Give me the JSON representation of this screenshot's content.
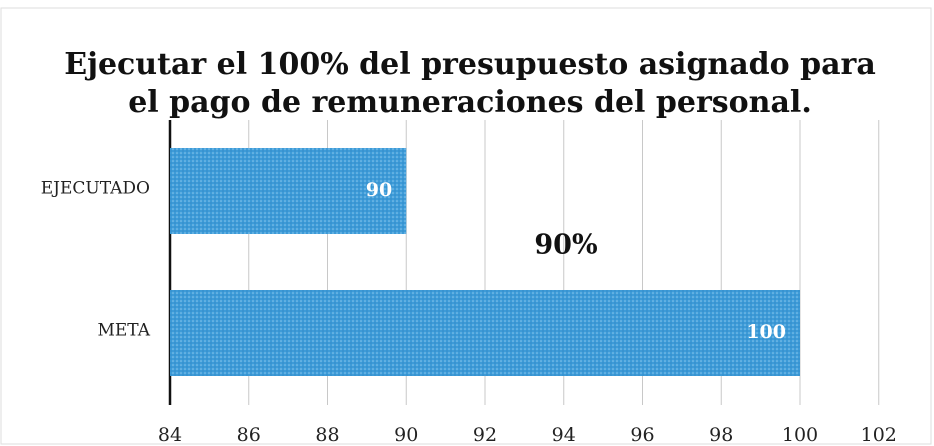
{
  "chart_data": {
    "type": "bar",
    "orientation": "horizontal",
    "title": [
      "Ejecutar el 100% del presupuesto asignado para",
      "el pago de remuneraciones del personal."
    ],
    "categories": [
      "EJECUTADO",
      "META"
    ],
    "values": [
      90,
      100
    ],
    "color": "#3d9bd8",
    "xlim": [
      84,
      102
    ],
    "xticks": [
      84,
      86,
      88,
      90,
      92,
      94,
      96,
      98,
      100,
      102
    ],
    "grid": true,
    "annotation": "90%"
  }
}
